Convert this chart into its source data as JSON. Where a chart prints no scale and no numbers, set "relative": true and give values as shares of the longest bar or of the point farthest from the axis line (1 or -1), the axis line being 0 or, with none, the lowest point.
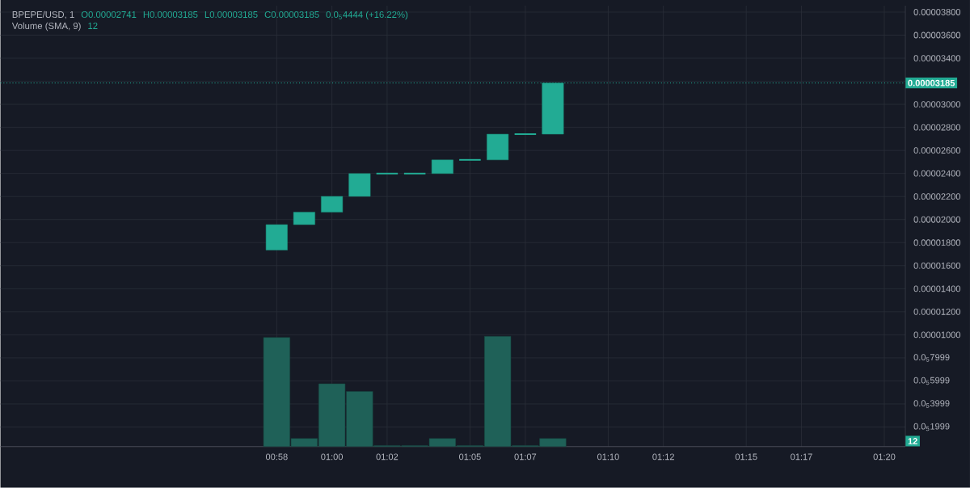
{
  "chart_data": [
    {
      "type": "candlestick",
      "title": "BPEPE/USD, 1",
      "annotations": [
        "O0.00002741",
        "H0.00003185",
        "L0.00003185",
        "C0.00003185",
        "0.0$_{5}$4444 (+16.22%)"
      ],
      "x": [
        0.9667,
        0.9833,
        1.0,
        1.0167,
        1.0333,
        1.05,
        1.0667,
        1.0833,
        1.1,
        1.1167,
        1.1333
      ],
      "ohlc": [
        [
          1.735e-05,
          1.956e-05,
          1.735e-05,
          1.956e-05
        ],
        [
          1.956e-05,
          2.064e-05,
          1.956e-05,
          2.064e-05
        ],
        [
          2.064e-05,
          2.201e-05,
          2.064e-05,
          2.201e-05
        ],
        [
          2.201e-05,
          2.399e-05,
          2.201e-05,
          2.399e-05
        ],
        [
          2.399e-05,
          2.399e-05,
          2.399e-05,
          2.399e-05
        ],
        [
          2.399e-05,
          2.399e-05,
          2.399e-05,
          2.399e-05
        ],
        [
          2.399e-05,
          2.518e-05,
          2.399e-05,
          2.518e-05
        ],
        [
          2.518e-05,
          2.518e-05,
          2.518e-05,
          2.518e-05
        ],
        [
          2.518e-05,
          2.741e-05,
          2.518e-05,
          2.741e-05
        ],
        [
          2.741e-05,
          2.741e-05,
          2.741e-05,
          2.741e-05
        ],
        [
          2.741e-05,
          3.185e-05,
          2.741e-05,
          3.185e-05
        ]
      ],
      "color": "#22ab94",
      "xlim": [
        0.8,
        1.346
      ],
      "ylim": [
        3e-07,
        3.856e-05
      ],
      "xticks": [
        {
          "value": 0.9667,
          "label": "00:58"
        },
        {
          "value": 1.0,
          "label": "01:00"
        },
        {
          "value": 1.0333,
          "label": "01:02"
        },
        {
          "value": 1.0833,
          "label": "01:05"
        },
        {
          "value": 1.1167,
          "label": "01:07"
        },
        {
          "value": 1.1667,
          "label": "01:10"
        },
        {
          "value": 1.2,
          "label": "01:12"
        },
        {
          "value": 1.25,
          "label": "01:15"
        },
        {
          "value": 1.2833,
          "label": "01:17"
        },
        {
          "value": 1.3333,
          "label": "01:20"
        }
      ],
      "yticks": [
        {
          "value": 1.999e-06,
          "label": "0.0$_{5}$1999"
        },
        {
          "value": 3.999e-06,
          "label": "0.0$_{5}$3999"
        },
        {
          "value": 5.999e-06,
          "label": "0.0$_{5}$5999"
        },
        {
          "value": 7.999e-06,
          "label": "0.0$_{5}$7999"
        },
        {
          "value": 1e-05,
          "label": "0.00001000"
        },
        {
          "value": 1.2e-05,
          "label": "0.00001200"
        },
        {
          "value": 1.4e-05,
          "label": "0.00001400"
        },
        {
          "value": 1.6e-05,
          "label": "0.00001600"
        },
        {
          "value": 1.8e-05,
          "label": "0.00001800"
        },
        {
          "value": 2e-05,
          "label": "0.00002000"
        },
        {
          "value": 2.2e-05,
          "label": "0.00002200"
        },
        {
          "value": 2.4e-05,
          "label": "0.00002400"
        },
        {
          "value": 2.6e-05,
          "label": "0.00002600"
        },
        {
          "value": 2.8e-05,
          "label": "0.00002800"
        },
        {
          "value": 3e-05,
          "label": "0.00003000"
        },
        {
          "value": 3.2e-05,
          "label": null
        },
        {
          "value": 3.4e-05,
          "label": "0.00003400"
        },
        {
          "value": 3.6e-05,
          "label": "0.00003600"
        },
        {
          "value": 3.8e-05,
          "label": "0.00003800"
        }
      ],
      "grid": true,
      "ref_lines": [
        {
          "axis": "y",
          "value": 3.185e-05,
          "label": "0.00003185",
          "color": "#22ab94",
          "line_style": "dotted"
        }
      ]
    },
    {
      "type": "bar",
      "title": "Volume (SMA, 9)",
      "annotations": [
        "12",
        "12"
      ],
      "x": [
        0.9667,
        0.9833,
        1.0,
        1.0167,
        1.0333,
        1.05,
        1.0667,
        1.0833,
        1.1,
        1.1167,
        1.1333
      ],
      "values": [
        0.99,
        0.074,
        0.57,
        0.5,
        0.01,
        0.01,
        0.074,
        0.01,
        1,
        0.01,
        0.074
      ],
      "relative": true,
      "color": "#1f6158",
      "xlim": [
        0.8,
        1.346
      ],
      "tick_labels": false
    }
  ]
}
